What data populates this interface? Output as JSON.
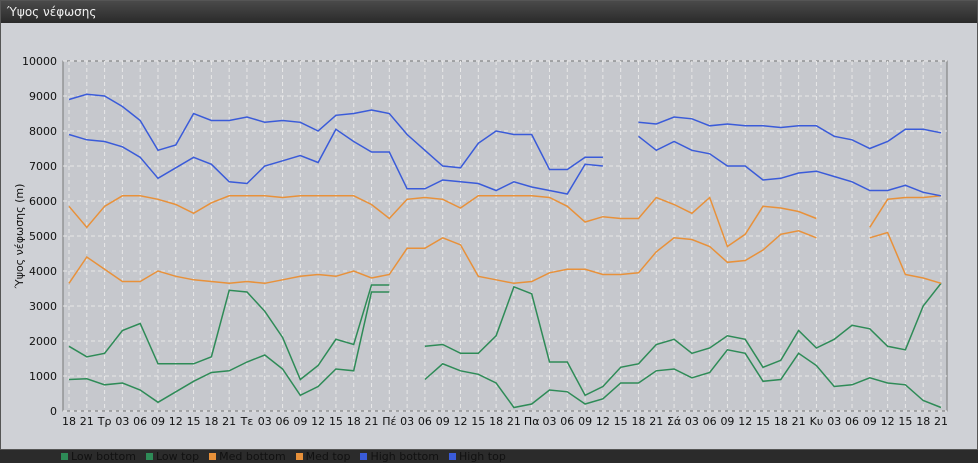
{
  "window": {
    "title": "Ύψος νέφωσης"
  },
  "chart_data": {
    "type": "line",
    "title": "",
    "ylabel": "Ύψος νέφωσης (m)",
    "xlabel": "",
    "ylim": [
      0,
      10000
    ],
    "yticks": [
      0,
      1000,
      2000,
      3000,
      4000,
      5000,
      6000,
      7000,
      8000,
      9000,
      10000
    ],
    "grid": true,
    "legend": "bottom-left",
    "categories": [
      "18",
      "21",
      "Τρ",
      "03",
      "06",
      "09",
      "12",
      "15",
      "18",
      "21",
      "Τε",
      "03",
      "06",
      "09",
      "12",
      "15",
      "18",
      "21",
      "Πέ",
      "03",
      "06",
      "09",
      "12",
      "15",
      "18",
      "21",
      "Πα",
      "03",
      "06",
      "09",
      "12",
      "15",
      "18",
      "21",
      "Σά",
      "03",
      "06",
      "09",
      "12",
      "15",
      "18",
      "21",
      "Κυ",
      "03",
      "06",
      "09",
      "12",
      "15",
      "18",
      "21"
    ],
    "series": [
      {
        "name": "Low bottom",
        "color": "#2e8b57",
        "values": [
          900,
          920,
          750,
          800,
          600,
          250,
          550,
          850,
          1100,
          1150,
          1400,
          1600,
          1200,
          450,
          700,
          1200,
          1150,
          3400,
          3400,
          null,
          900,
          1350,
          1150,
          1050,
          800,
          100,
          200,
          600,
          550,
          200,
          350,
          800,
          800,
          1150,
          1200,
          950,
          1100,
          1750,
          1650,
          850,
          900,
          1650,
          1300,
          700,
          750,
          950,
          800,
          750,
          300,
          100
        ]
      },
      {
        "name": "Low top",
        "color": "#2e8b57",
        "values": [
          1850,
          1550,
          1650,
          2300,
          2500,
          1350,
          1350,
          1350,
          1550,
          3450,
          3400,
          2850,
          2100,
          900,
          1300,
          2050,
          1900,
          3600,
          3600,
          null,
          1850,
          1900,
          1650,
          1650,
          2150,
          3550,
          3350,
          1400,
          1400,
          450,
          700,
          1250,
          1350,
          1900,
          2050,
          1650,
          1800,
          2150,
          2050,
          1250,
          1450,
          2300,
          1800,
          2050,
          2450,
          2350,
          1850,
          1750,
          3000,
          3650
        ]
      },
      {
        "name": "Med bottom",
        "color": "#e8913a",
        "values": [
          3650,
          4400,
          4050,
          3700,
          3700,
          4000,
          3850,
          3750,
          3700,
          3650,
          3700,
          3650,
          3750,
          3850,
          3900,
          3850,
          4000,
          3800,
          3900,
          4650,
          4650,
          4950,
          4750,
          3850,
          3750,
          3650,
          3700,
          3950,
          4050,
          4050,
          3900,
          3900,
          3950,
          4550,
          4950,
          4900,
          4700,
          4250,
          4300,
          4600,
          5050,
          5150,
          4950,
          null,
          null,
          4950,
          5100,
          3900,
          3800,
          3650
        ]
      },
      {
        "name": "Med top",
        "color": "#e8913a",
        "values": [
          5850,
          5250,
          5850,
          6150,
          6150,
          6050,
          5900,
          5650,
          5950,
          6150,
          6150,
          6150,
          6100,
          6150,
          6150,
          6150,
          6150,
          5900,
          5500,
          6050,
          6100,
          6050,
          5800,
          6150,
          6150,
          6150,
          6150,
          6100,
          5850,
          5400,
          5550,
          5500,
          5500,
          6100,
          5900,
          5650,
          6100,
          4700,
          5050,
          5850,
          5800,
          5700,
          5500,
          null,
          null,
          5250,
          6050,
          6100,
          6100,
          6150
        ]
      },
      {
        "name": "High bottom",
        "color": "#3a5bd9",
        "values": [
          7900,
          7750,
          7700,
          7550,
          7250,
          6650,
          6950,
          7250,
          7050,
          6550,
          6500,
          7000,
          7150,
          7300,
          7100,
          8050,
          7700,
          7400,
          7400,
          6350,
          6350,
          6600,
          6550,
          6500,
          6300,
          6550,
          6400,
          6300,
          6200,
          7050,
          7000,
          null,
          7850,
          7450,
          7700,
          7450,
          7350,
          7000,
          7000,
          6600,
          6650,
          6800,
          6850,
          6700,
          6550,
          6300,
          6300,
          6450,
          6250,
          6150
        ]
      },
      {
        "name": "High top",
        "color": "#3a5bd9",
        "values": [
          8900,
          9050,
          9000,
          8700,
          8300,
          7450,
          7600,
          8500,
          8300,
          8300,
          8400,
          8250,
          8300,
          8250,
          8000,
          8450,
          8500,
          8600,
          8500,
          7900,
          7450,
          7000,
          6950,
          7650,
          8000,
          7900,
          7900,
          6900,
          6900,
          7250,
          7250,
          null,
          8250,
          8200,
          8400,
          8350,
          8150,
          8200,
          8150,
          8150,
          8100,
          8150,
          8150,
          7850,
          7750,
          7500,
          7700,
          8050,
          8050,
          7950
        ]
      }
    ]
  }
}
